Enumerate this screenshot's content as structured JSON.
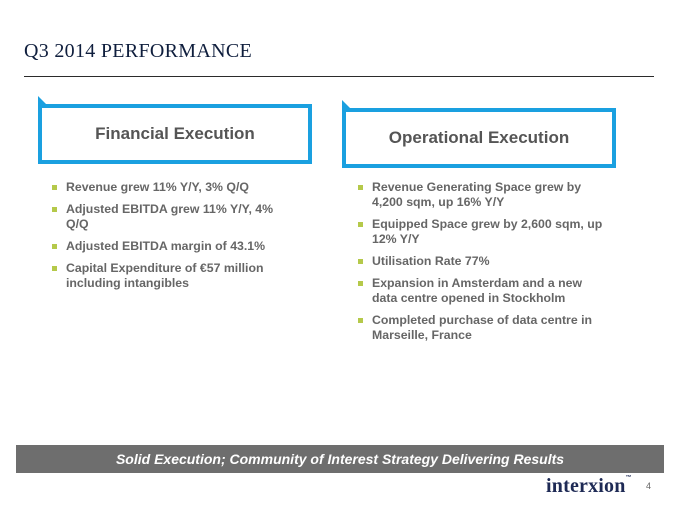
{
  "header": {
    "quarter": "Q3",
    "year": "2014",
    "heading": "PERFORMANCE"
  },
  "financial": {
    "title": "Financial Execution",
    "items": [
      "Revenue grew 11% Y/Y, 3% Q/Q",
      "Adjusted EBITDA grew 11% Y/Y, 4% Q/Q",
      "Adjusted EBITDA margin of 43.1%",
      "Capital Expenditure of €57 million including intangibles"
    ]
  },
  "operational": {
    "title": "Operational Execution",
    "items": [
      "Revenue Generating Space grew by 4,200 sqm, up 16% Y/Y",
      "Equipped Space grew by 2,600 sqm, up 12% Y/Y",
      "Utilisation Rate 77%",
      "Expansion in Amsterdam and a new data centre opened in Stockholm",
      "Completed purchase of data centre in Marseille, France"
    ]
  },
  "banner": "Solid Execution; Community of Interest Strategy Delivering Results",
  "footer": {
    "logo_text": "interxion",
    "trademark": "™",
    "page_number": "4"
  },
  "colors": {
    "accent_blue": "#1aa0e0",
    "bullet_green": "#b5c94a",
    "banner_gray": "#6e6e6e",
    "title_navy": "#0f1e3d"
  }
}
